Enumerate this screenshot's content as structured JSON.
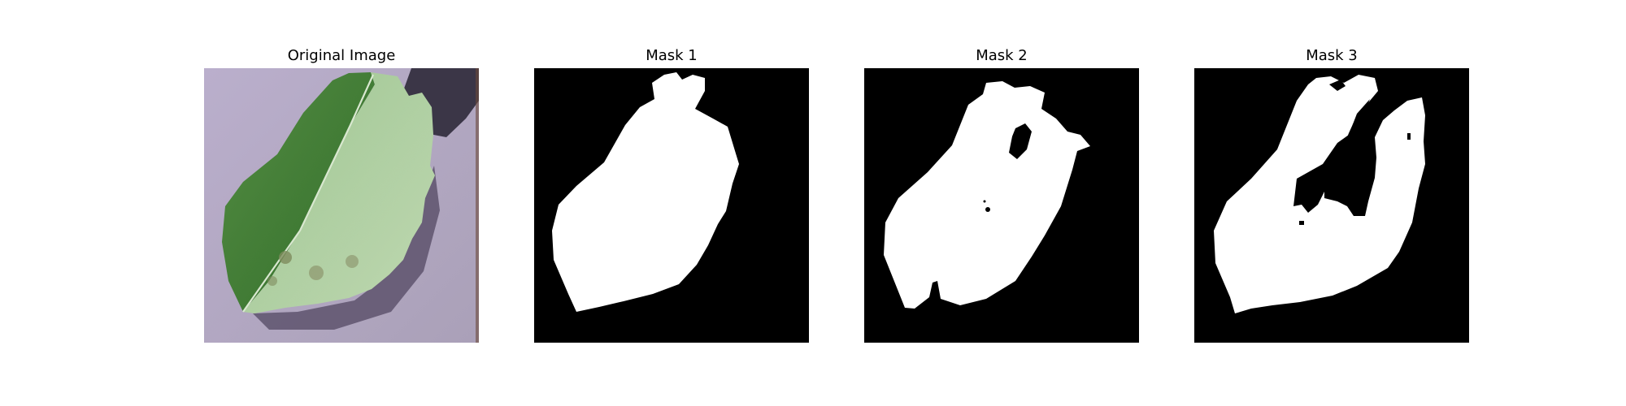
{
  "panels": [
    {
      "title": "Original Image",
      "kind": "photo",
      "subject": "leaf"
    },
    {
      "title": "Mask 1",
      "kind": "binary-mask"
    },
    {
      "title": "Mask 2",
      "kind": "binary-mask"
    },
    {
      "title": "Mask 3",
      "kind": "binary-mask"
    }
  ],
  "colors": {
    "mask_background": "#000000",
    "mask_foreground": "#ffffff",
    "photo_background": "#b4a9c3",
    "leaf_light": "#a9c99a",
    "leaf_dark": "#3f7a32",
    "leaf_shadow": "#2f2b3a"
  }
}
